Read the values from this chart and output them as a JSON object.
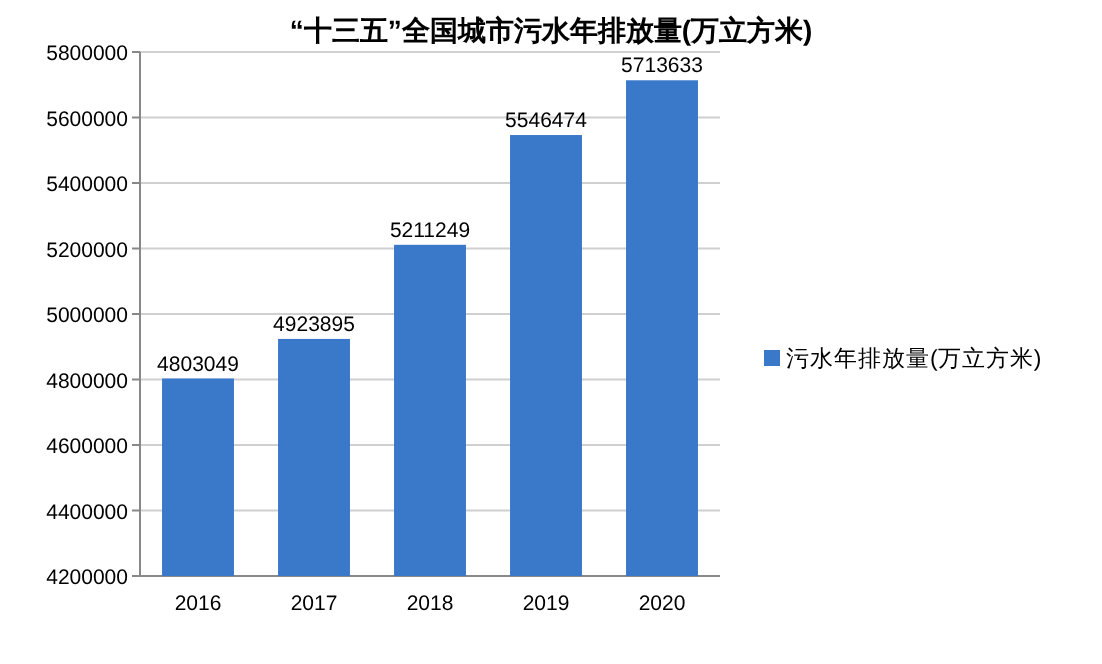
{
  "chart_data": {
    "type": "bar",
    "title": "“十三五”全国城市污水年排放量(万立方米)",
    "categories": [
      "2016",
      "2017",
      "2018",
      "2019",
      "2020"
    ],
    "series": [
      {
        "name": "污水年排放量(万立方米)",
        "color": "#3a78c9",
        "values": [
          4803049,
          4923895,
          5211249,
          5546474,
          5713633
        ]
      }
    ],
    "ylim": [
      4200000,
      5800000
    ],
    "yticks": [
      4200000,
      4400000,
      4600000,
      4800000,
      5000000,
      5200000,
      5400000,
      5600000,
      5800000
    ],
    "grid": "y",
    "legend": "right",
    "data_labels": true
  }
}
